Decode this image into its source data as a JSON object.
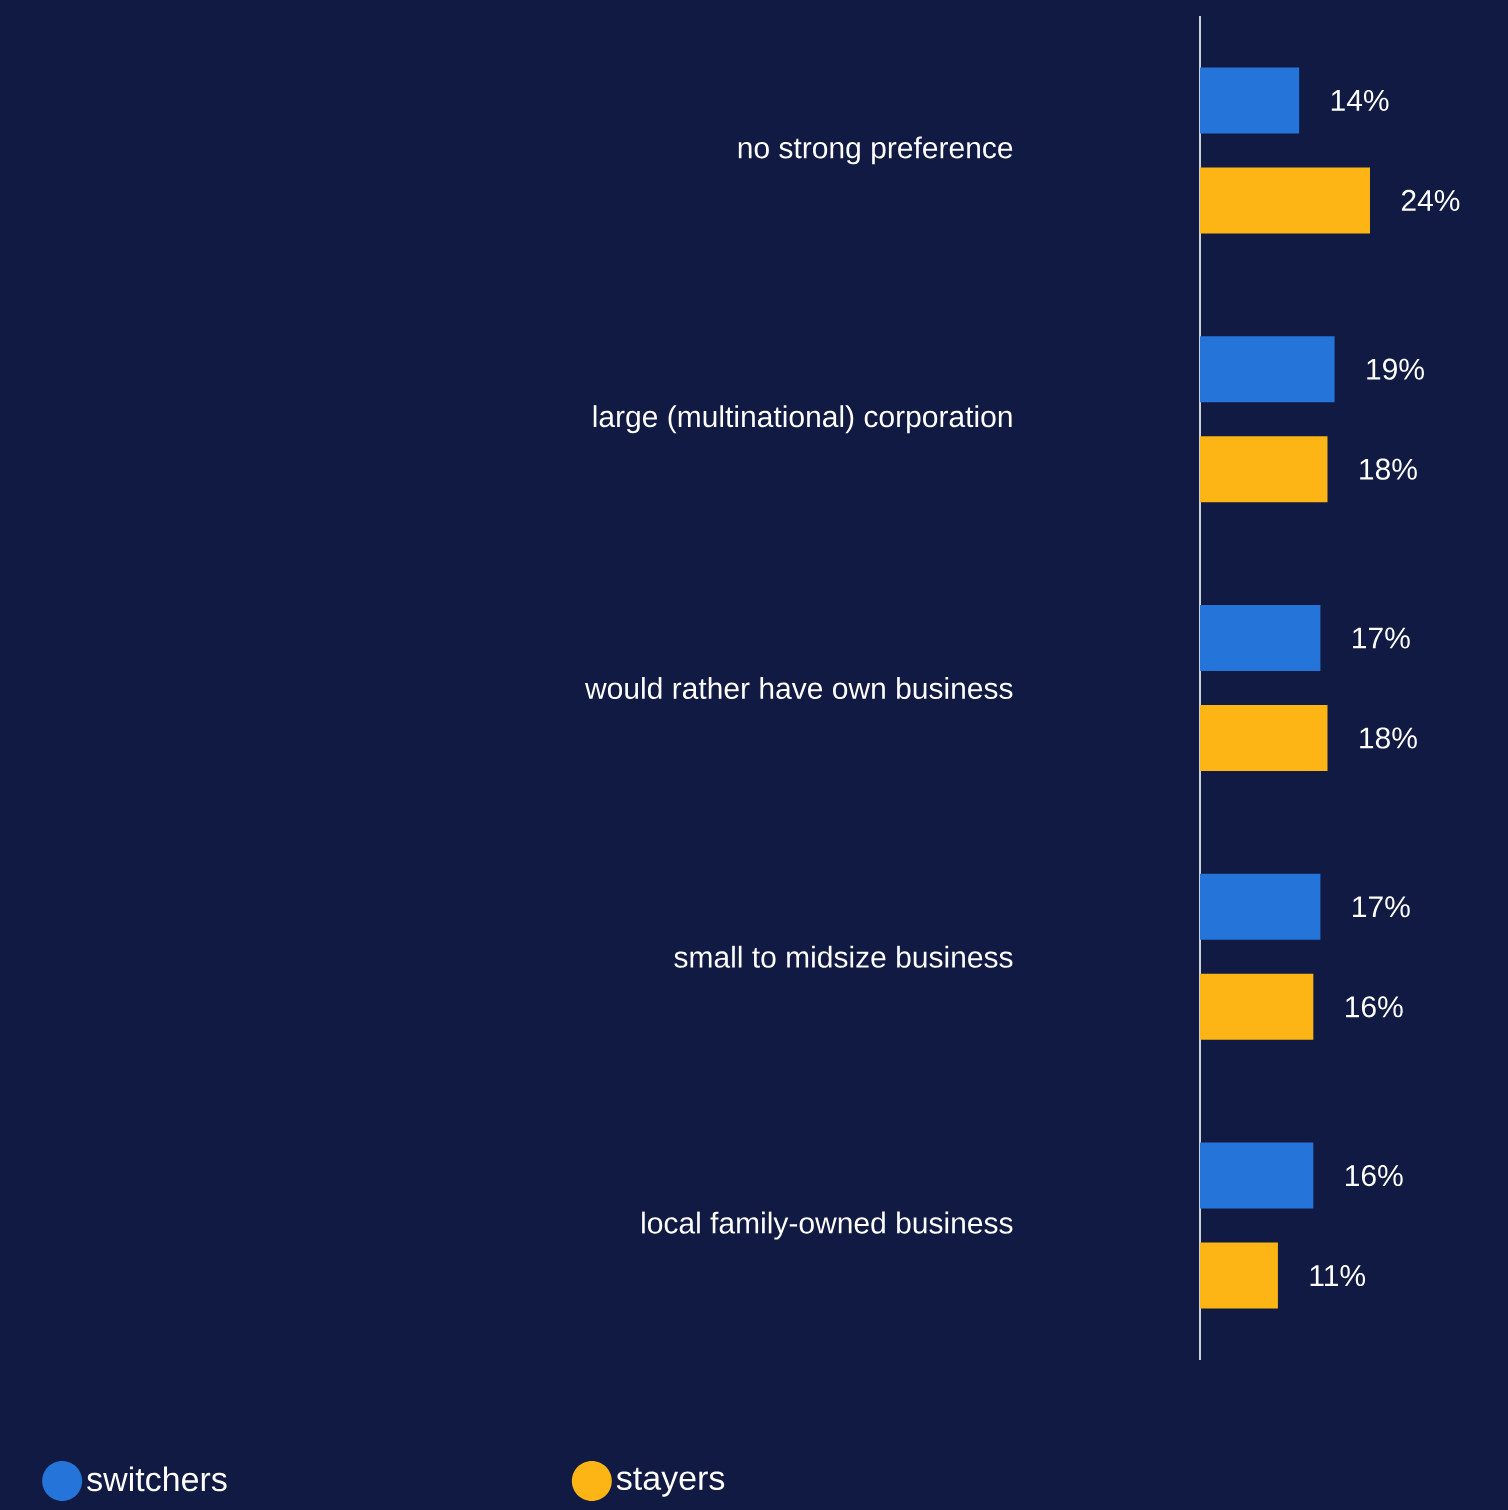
{
  "chart_data": {
    "type": "bar",
    "orientation": "horizontal",
    "categories": [
      "no strong preference",
      "large (multinational) corporation",
      "would rather have own business",
      "small to midsize business",
      "local family-owned business"
    ],
    "series": [
      {
        "name": "switchers",
        "color": "#2474da",
        "values": [
          14,
          19,
          17,
          17,
          16
        ],
        "value_labels": [
          "14%",
          "19%",
          "17%",
          "17%",
          "16%"
        ]
      },
      {
        "name": "stayers",
        "color": "#fdb515",
        "values": [
          24,
          18,
          18,
          16,
          11
        ],
        "value_labels": [
          "24%",
          "18%",
          "18%",
          "16%",
          "11%"
        ]
      }
    ],
    "legend": "bottom left",
    "tick_labels": "y"
  }
}
